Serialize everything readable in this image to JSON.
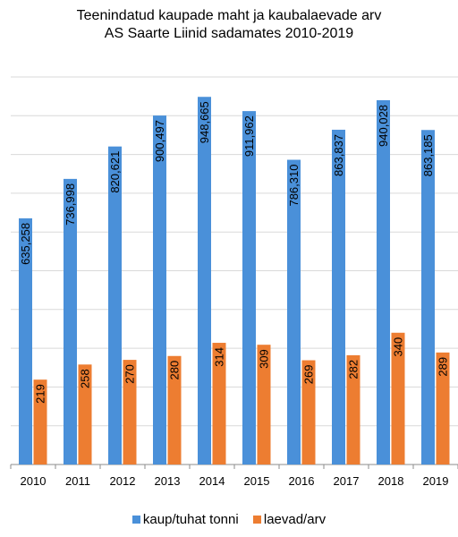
{
  "chart_data": {
    "type": "bar",
    "title_line1": "Teenindatud kaupade maht ja kaubalaevade arv",
    "title_line2": "AS Saarte Liinid sadamates 2010-2019",
    "categories": [
      "2010",
      "2011",
      "2012",
      "2013",
      "2014",
      "2015",
      "2016",
      "2017",
      "2018",
      "2019"
    ],
    "series": [
      {
        "name": "kaup/tuhat tonni",
        "color": "#4a90d9",
        "values": [
          635.258,
          736.998,
          820.621,
          900.497,
          948.665,
          911.962,
          786.31,
          863.837,
          940.028,
          863.185
        ],
        "labels": [
          "635,258",
          "736,998",
          "820,621",
          "900,497",
          "948,665",
          "911,962",
          "786,310",
          "863,837",
          "940,028",
          "863,185"
        ]
      },
      {
        "name": "laevad/arv",
        "color": "#ed7d31",
        "values": [
          219,
          258,
          270,
          280,
          314,
          309,
          269,
          282,
          340,
          289
        ],
        "labels": [
          "219",
          "258",
          "270",
          "280",
          "314",
          "309",
          "269",
          "282",
          "340",
          "289"
        ]
      }
    ],
    "ylim": [
      0,
      1000
    ],
    "gridlines": true,
    "legend_position": "bottom"
  }
}
